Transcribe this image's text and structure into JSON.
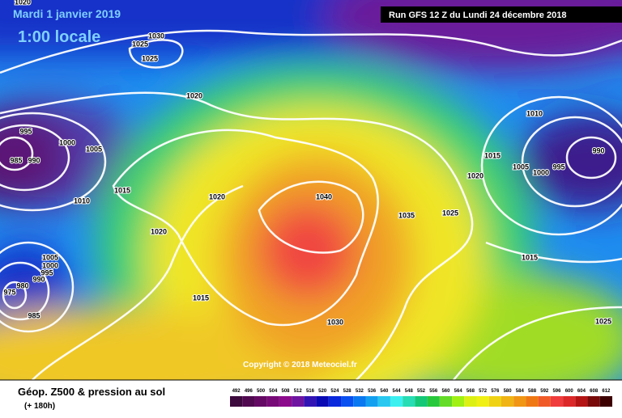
{
  "header": {
    "title": "Mardi 1 janvier 2019",
    "time": "1:00 locale",
    "run": "Run GFS 12 Z du Lundi 24 décembre 2018"
  },
  "copyright": "Copyright © 2018 Meteociel.fr",
  "legend": {
    "title": "Géop. Z500 & pression au sol",
    "lead": "(+ 180h)",
    "scale": [
      {
        "label": "492",
        "color": "#3c0a3c"
      },
      {
        "label": "496",
        "color": "#500a50"
      },
      {
        "label": "500",
        "color": "#640a64"
      },
      {
        "label": "504",
        "color": "#780a78"
      },
      {
        "label": "508",
        "color": "#8c0a8c"
      },
      {
        "label": "512",
        "color": "#6e14a0"
      },
      {
        "label": "516",
        "color": "#3214b4"
      },
      {
        "label": "520",
        "color": "#0a0ab4"
      },
      {
        "label": "524",
        "color": "#0a28dc"
      },
      {
        "label": "528",
        "color": "#0a50f0"
      },
      {
        "label": "532",
        "color": "#0a78f0"
      },
      {
        "label": "536",
        "color": "#14a0f0"
      },
      {
        "label": "540",
        "color": "#28c8f0"
      },
      {
        "label": "544",
        "color": "#3cf0f0"
      },
      {
        "label": "548",
        "color": "#28dcb4"
      },
      {
        "label": "552",
        "color": "#14c878"
      },
      {
        "label": "556",
        "color": "#28c83c"
      },
      {
        "label": "560",
        "color": "#64dc28"
      },
      {
        "label": "564",
        "color": "#a0f014"
      },
      {
        "label": "568",
        "color": "#dcf014"
      },
      {
        "label": "572",
        "color": "#f0f014"
      },
      {
        "label": "576",
        "color": "#f0d214"
      },
      {
        "label": "580",
        "color": "#f0b414"
      },
      {
        "label": "584",
        "color": "#f09614"
      },
      {
        "label": "588",
        "color": "#f07814"
      },
      {
        "label": "592",
        "color": "#f05a28"
      },
      {
        "label": "596",
        "color": "#f03c3c"
      },
      {
        "label": "600",
        "color": "#dc2828"
      },
      {
        "label": "604",
        "color": "#b41414"
      },
      {
        "label": "608",
        "color": "#780a0a"
      },
      {
        "label": "612",
        "color": "#3c0000"
      }
    ]
  },
  "isobar_labels": [
    "1020",
    "1030",
    "1025",
    "1025",
    "1020",
    "995",
    "1000",
    "985",
    "990",
    "1005",
    "1010",
    "1015",
    "1020",
    "1020",
    "1005",
    "1000",
    "995",
    "990",
    "980",
    "975",
    "985",
    "1015",
    "1030",
    "1040",
    "1035",
    "1025",
    "1020",
    "1015",
    "1010",
    "990",
    "1005",
    "1000",
    "995",
    "1015",
    "1025"
  ]
}
